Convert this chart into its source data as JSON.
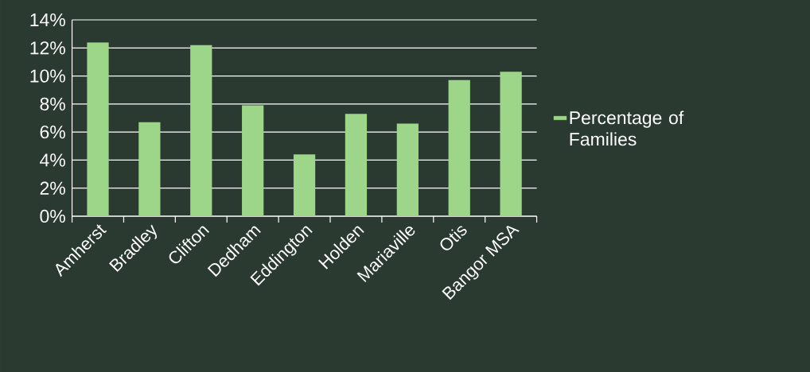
{
  "chart_data": {
    "type": "bar",
    "categories": [
      "Amherst",
      "Bradley",
      "Clifton",
      "Dedham",
      "Eddington",
      "Holden",
      "Mariaville",
      "Otis",
      "Bangor MSA"
    ],
    "series": [
      {
        "name": "Percentage of Families",
        "color": "#9dd589",
        "values": [
          12.4,
          6.7,
          12.2,
          7.9,
          4.4,
          7.3,
          6.6,
          9.7,
          10.3
        ]
      }
    ],
    "ylim": [
      0,
      14
    ],
    "yticks": [
      {
        "value": 0,
        "label": "0%"
      },
      {
        "value": 2,
        "label": "2%"
      },
      {
        "value": 4,
        "label": "4%"
      },
      {
        "value": 6,
        "label": "6%"
      },
      {
        "value": 8,
        "label": "8%"
      },
      {
        "value": 10,
        "label": "10%"
      },
      {
        "value": 12,
        "label": "12%"
      },
      {
        "value": 14,
        "label": "14%"
      }
    ],
    "grid": "y",
    "legend": "right"
  }
}
